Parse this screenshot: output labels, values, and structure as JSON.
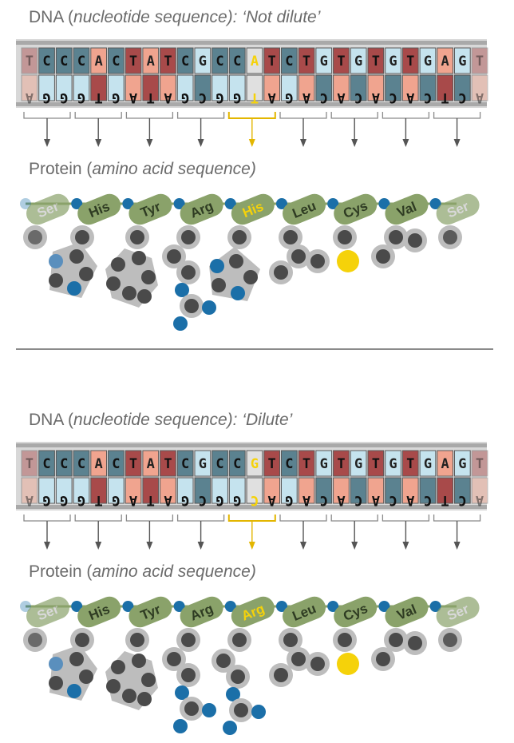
{
  "panels": [
    {
      "dna_label": {
        "prefix": "DNA (",
        "italic": "nucleotide sequence): ",
        "suffix": "‘Not dilute’"
      },
      "protein_label": {
        "prefix": "Protein (",
        "italic": "amino acid sequence)"
      },
      "top_strand": [
        "T",
        "C",
        "C",
        "C",
        "A",
        "C",
        "T",
        "A",
        "T",
        "C",
        "G",
        "C",
        "C",
        "A",
        "T",
        "C",
        "T",
        "G",
        "T",
        "G",
        "T",
        "G",
        "T",
        "G",
        "A",
        "G",
        "T"
      ],
      "bottom_strand": [
        "A",
        "G",
        "G",
        "G",
        "T",
        "G",
        "A",
        "T",
        "A",
        "G",
        "C",
        "G",
        "G",
        "T",
        "A",
        "G",
        "A",
        "C",
        "A",
        "C",
        "A",
        "C",
        "A",
        "C",
        "T",
        "C",
        "A"
      ],
      "highlight_index": 13,
      "amino_acids": [
        "Ser",
        "His",
        "Tyr",
        "Arg",
        "His",
        "Leu",
        "Cys",
        "Val",
        "Ser"
      ],
      "highlight_amino": 4
    },
    {
      "dna_label": {
        "prefix": "DNA (",
        "italic": "nucleotide sequence): ",
        "suffix": "‘Dilute’"
      },
      "protein_label": {
        "prefix": "Protein (",
        "italic": "amino acid sequence)"
      },
      "top_strand": [
        "T",
        "C",
        "C",
        "C",
        "A",
        "C",
        "T",
        "A",
        "T",
        "C",
        "G",
        "C",
        "C",
        "G",
        "T",
        "C",
        "T",
        "G",
        "T",
        "G",
        "T",
        "G",
        "T",
        "G",
        "A",
        "G",
        "T"
      ],
      "bottom_strand": [
        "A",
        "G",
        "G",
        "G",
        "T",
        "G",
        "A",
        "T",
        "A",
        "G",
        "C",
        "G",
        "G",
        "C",
        "A",
        "G",
        "A",
        "C",
        "A",
        "C",
        "A",
        "C",
        "A",
        "C",
        "T",
        "C",
        "A"
      ],
      "highlight_index": 13,
      "amino_acids": [
        "Ser",
        "His",
        "Tyr",
        "Arg",
        "Arg",
        "Leu",
        "Cys",
        "Val",
        "Ser"
      ],
      "highlight_amino": 4
    }
  ],
  "colors": {
    "T": "#a84a4a",
    "A": "#f0a48f",
    "C": "#5b8290",
    "G": "#c5e3ee",
    "highlight": "#f5d20a",
    "amino": "#8aa26a",
    "phosphate": "#1b6fa8",
    "atom": "#4a4a4a",
    "ring": "#bdbdbd",
    "title": "#6b6b6b"
  }
}
